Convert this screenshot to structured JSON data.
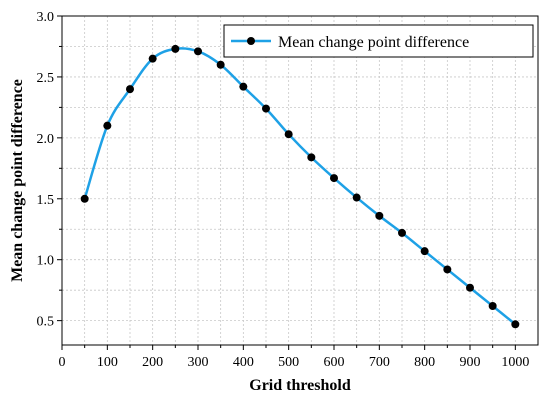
{
  "chart_data": {
    "type": "line",
    "title": "",
    "xlabel": "Grid threshold",
    "ylabel": "Mean change point difference",
    "xlim": [
      0,
      1050
    ],
    "ylim": [
      0.3,
      3.0
    ],
    "xticks": [
      0,
      100,
      200,
      300,
      400,
      500,
      600,
      700,
      800,
      900,
      1000
    ],
    "yticks": [
      0.5,
      1.0,
      1.5,
      2.0,
      2.5,
      3.0
    ],
    "xtick_labels": [
      "0",
      "100",
      "200",
      "300",
      "400",
      "500",
      "600",
      "700",
      "800",
      "900",
      "1000"
    ],
    "ytick_labels": [
      "0.5",
      "1.0",
      "1.5",
      "2.0",
      "2.5",
      "3.0"
    ],
    "grid": true,
    "legend_position": "top-right",
    "series": [
      {
        "name": "Mean change point difference",
        "color": "#1ea1e6",
        "marker_color": "#000000",
        "x": [
          50,
          100,
          150,
          200,
          250,
          300,
          350,
          400,
          450,
          500,
          550,
          600,
          650,
          700,
          750,
          800,
          850,
          900,
          950,
          1000
        ],
        "y": [
          1.5,
          2.1,
          2.4,
          2.65,
          2.73,
          2.71,
          2.6,
          2.42,
          2.24,
          2.03,
          1.84,
          1.67,
          1.51,
          1.36,
          1.22,
          1.07,
          0.92,
          0.77,
          0.62,
          0.47
        ]
      }
    ]
  }
}
